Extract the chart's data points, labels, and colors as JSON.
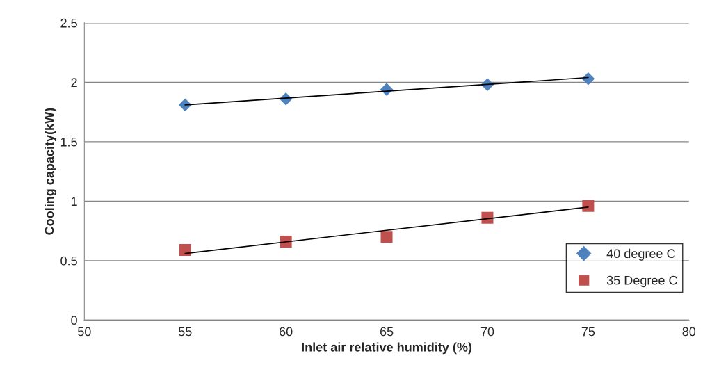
{
  "chart_data": {
    "type": "scatter",
    "xlabel": "Inlet air relative humidity (%)",
    "ylabel": "Cooling capacity(kW)",
    "x": [
      55,
      60,
      65,
      70,
      75
    ],
    "series": [
      {
        "name": "40 degree C",
        "color": "#4f81bd",
        "marker": "diamond",
        "values": [
          1.81,
          1.86,
          1.94,
          1.98,
          2.03
        ]
      },
      {
        "name": "35 Degree C",
        "color": "#c0504d",
        "marker": "square",
        "values": [
          0.59,
          0.66,
          0.7,
          0.86,
          0.96
        ]
      },
      {
        "type": "line",
        "color": "#000000",
        "values": [
          1.81,
          null,
          null,
          null,
          2.04
        ]
      },
      {
        "type": "line",
        "color": "#000000",
        "values": [
          0.56,
          null,
          null,
          null,
          0.95
        ]
      }
    ],
    "xlim": [
      50,
      80
    ],
    "xticks": [
      50,
      55,
      60,
      65,
      70,
      75,
      80
    ],
    "ylim": [
      0,
      2.5
    ],
    "yticks": [
      0,
      0.5,
      1,
      1.5,
      2,
      2.5
    ],
    "grid": "y",
    "legend": "right"
  }
}
